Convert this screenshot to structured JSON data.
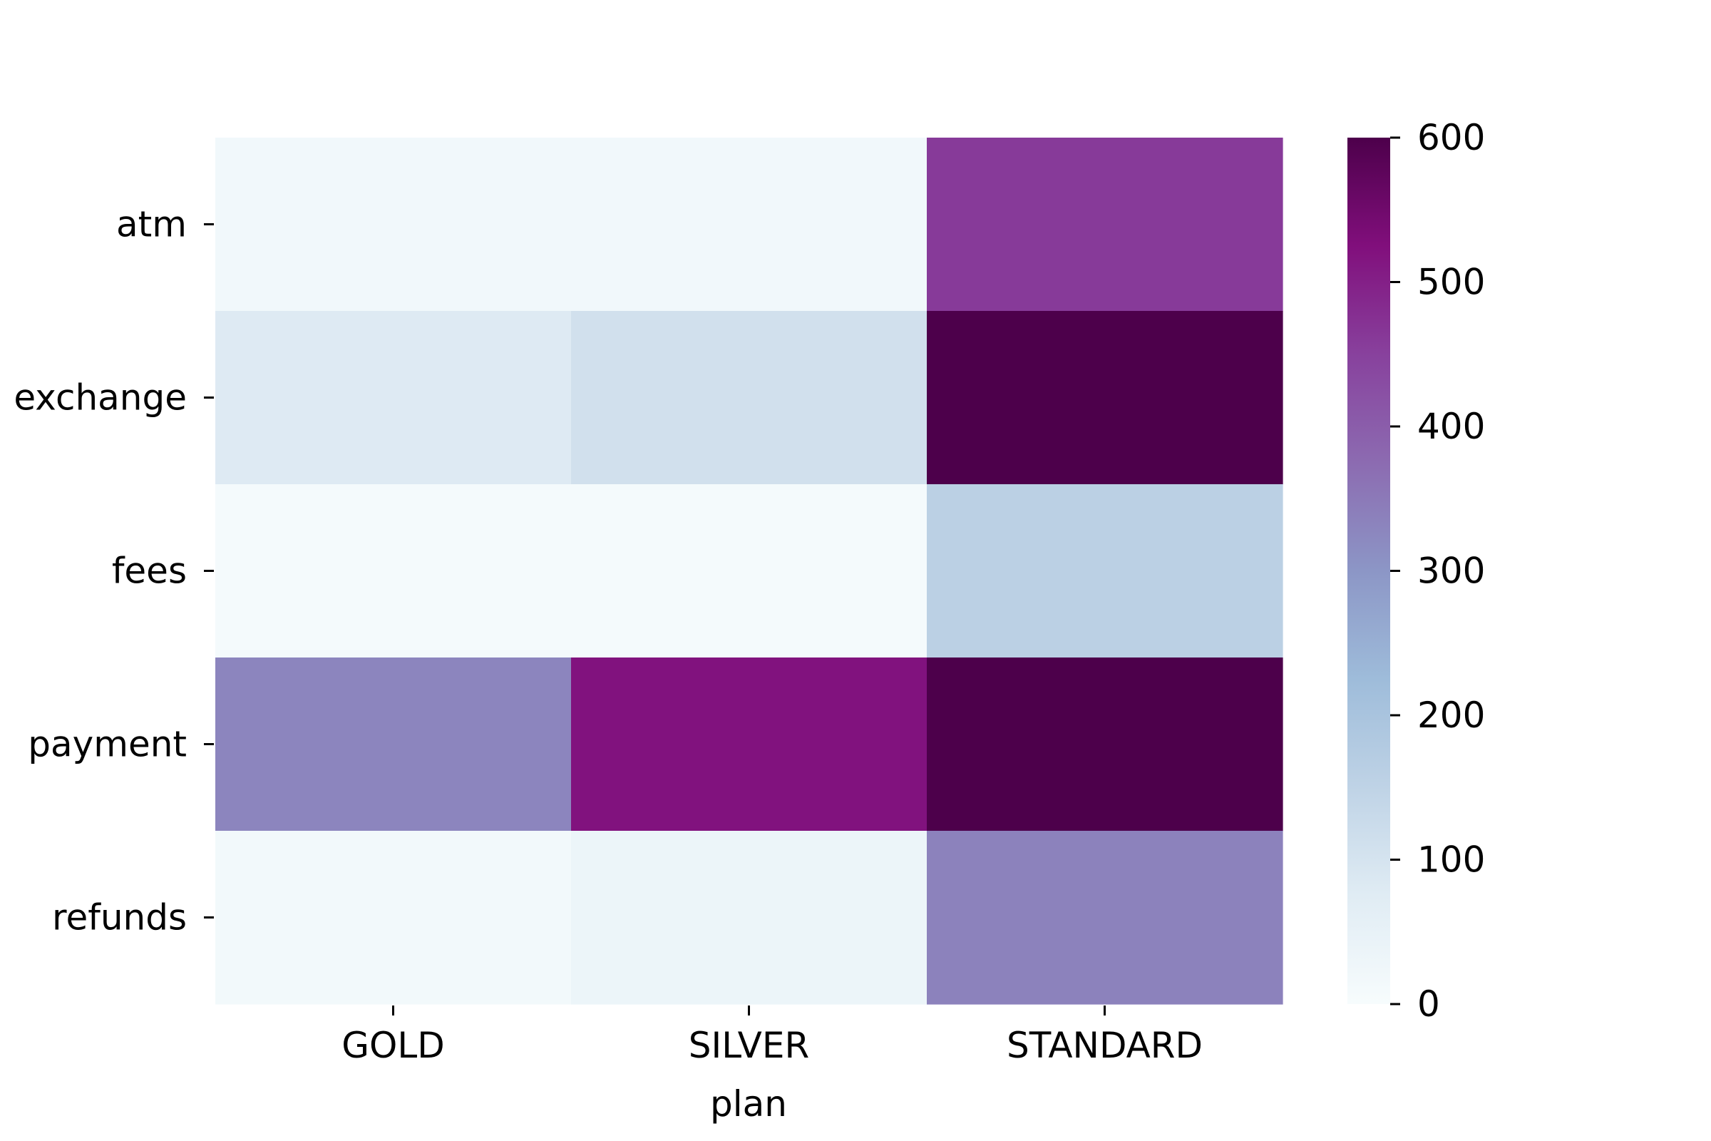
{
  "chart_data": {
    "type": "heatmap",
    "title": "",
    "xlabel": "plan",
    "ylabel": "",
    "x_categories": [
      "GOLD",
      "SILVER",
      "STANDARD"
    ],
    "y_categories": [
      "atm",
      "exchange",
      "fees",
      "payment",
      "refunds"
    ],
    "values": [
      [
        20,
        20,
        460
      ],
      [
        80,
        110,
        600
      ],
      [
        10,
        10,
        160
      ],
      [
        330,
        520,
        600
      ],
      [
        15,
        35,
        335
      ]
    ],
    "colormap": "BuPu",
    "colorbar": {
      "vmin": 0,
      "vmax": 600,
      "ticks": [
        "0",
        "100",
        "200",
        "300",
        "400",
        "500",
        "600"
      ]
    }
  }
}
